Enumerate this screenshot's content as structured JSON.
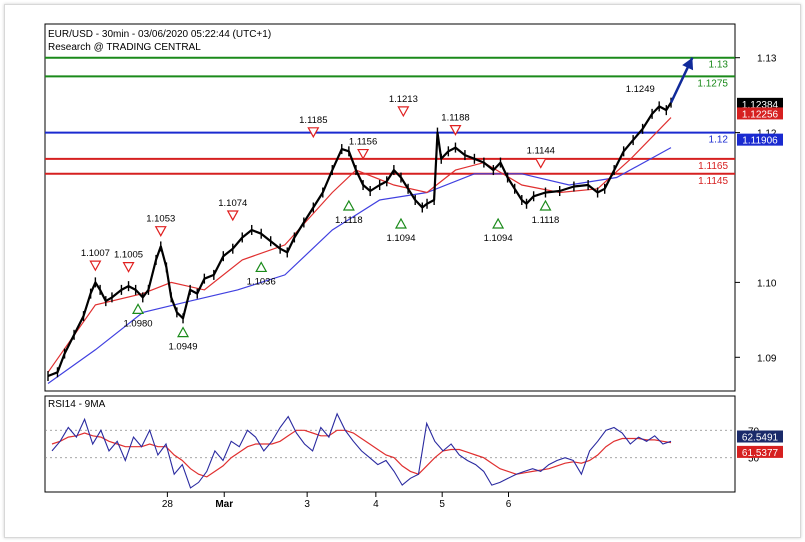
{
  "header": {
    "title": "EUR/USD - 30min - 03/06/2020 05:22:44 (UTC+1)",
    "subtitle": "Research @ TRADING CENTRAL"
  },
  "colors": {
    "price": "#000000",
    "ma_fast": "#e03030",
    "ma_slow": "#4040e0",
    "target": "#1a8a1a",
    "pivot": "#1a2ad0",
    "support": "#d62020",
    "rsi": "#2a2aa0",
    "rsi_signal": "#e03030",
    "arrow": "#102a9a"
  },
  "chart_data": [
    {
      "type": "line",
      "title": "EUR/USD - 30min - 03/06/2020 05:22:44 (UTC+1)",
      "subtitle": "Research @ TRADING CENTRAL",
      "ylim": [
        1.0855,
        1.1345
      ],
      "y_ticks": [
        "1.09",
        "1.10",
        "1.12",
        "1.13"
      ],
      "x_ticks": [
        "28",
        "Mar",
        "3",
        "4",
        "5",
        "6"
      ],
      "price_series": [
        {
          "x": 0.0,
          "y": 1.0875
        },
        {
          "x": 0.2,
          "y": 1.088
        },
        {
          "x": 0.35,
          "y": 1.0905
        },
        {
          "x": 0.55,
          "y": 1.093
        },
        {
          "x": 0.75,
          "y": 1.0955
        },
        {
          "x": 0.9,
          "y": 1.0985
        },
        {
          "x": 1.0,
          "y": 1.1
        },
        {
          "x": 1.1,
          "y": 1.099
        },
        {
          "x": 1.22,
          "y": 1.0975
        },
        {
          "x": 1.35,
          "y": 1.098
        },
        {
          "x": 1.55,
          "y": 1.099
        },
        {
          "x": 1.7,
          "y": 1.0995
        },
        {
          "x": 1.85,
          "y": 1.099
        },
        {
          "x": 2.0,
          "y": 1.098
        },
        {
          "x": 2.12,
          "y": 1.099
        },
        {
          "x": 2.28,
          "y": 1.103
        },
        {
          "x": 2.38,
          "y": 1.1048
        },
        {
          "x": 2.5,
          "y": 1.102
        },
        {
          "x": 2.6,
          "y": 1.098
        },
        {
          "x": 2.72,
          "y": 1.096
        },
        {
          "x": 2.85,
          "y": 1.0952
        },
        {
          "x": 3.0,
          "y": 1.099
        },
        {
          "x": 3.15,
          "y": 1.0985
        },
        {
          "x": 3.3,
          "y": 1.1005
        },
        {
          "x": 3.5,
          "y": 1.101
        },
        {
          "x": 3.7,
          "y": 1.1035
        },
        {
          "x": 3.9,
          "y": 1.1045
        },
        {
          "x": 4.1,
          "y": 1.106
        },
        {
          "x": 4.3,
          "y": 1.107
        },
        {
          "x": 4.5,
          "y": 1.1065
        },
        {
          "x": 4.7,
          "y": 1.1055
        },
        {
          "x": 4.9,
          "y": 1.1045
        },
        {
          "x": 5.05,
          "y": 1.104
        },
        {
          "x": 5.2,
          "y": 1.106
        },
        {
          "x": 5.4,
          "y": 1.108
        },
        {
          "x": 5.6,
          "y": 1.11
        },
        {
          "x": 5.8,
          "y": 1.112
        },
        {
          "x": 6.0,
          "y": 1.115
        },
        {
          "x": 6.2,
          "y": 1.1178
        },
        {
          "x": 6.35,
          "y": 1.1175
        },
        {
          "x": 6.5,
          "y": 1.115
        },
        {
          "x": 6.65,
          "y": 1.113
        },
        {
          "x": 6.8,
          "y": 1.1122
        },
        {
          "x": 7.0,
          "y": 1.113
        },
        {
          "x": 7.15,
          "y": 1.1135
        },
        {
          "x": 7.3,
          "y": 1.115
        },
        {
          "x": 7.45,
          "y": 1.114
        },
        {
          "x": 7.6,
          "y": 1.1125
        },
        {
          "x": 7.75,
          "y": 1.111
        },
        {
          "x": 7.9,
          "y": 1.11
        },
        {
          "x": 8.0,
          "y": 1.1105
        },
        {
          "x": 8.15,
          "y": 1.111
        },
        {
          "x": 8.22,
          "y": 1.12
        },
        {
          "x": 8.3,
          "y": 1.1165
        },
        {
          "x": 8.45,
          "y": 1.1175
        },
        {
          "x": 8.6,
          "y": 1.118
        },
        {
          "x": 8.8,
          "y": 1.117
        },
        {
          "x": 9.0,
          "y": 1.1165
        },
        {
          "x": 9.2,
          "y": 1.116
        },
        {
          "x": 9.4,
          "y": 1.115
        },
        {
          "x": 9.55,
          "y": 1.116
        },
        {
          "x": 9.7,
          "y": 1.114
        },
        {
          "x": 9.85,
          "y": 1.1125
        },
        {
          "x": 10.0,
          "y": 1.111
        },
        {
          "x": 10.1,
          "y": 1.1105
        },
        {
          "x": 10.25,
          "y": 1.1115
        },
        {
          "x": 10.5,
          "y": 1.112
        },
        {
          "x": 10.8,
          "y": 1.1122
        },
        {
          "x": 11.1,
          "y": 1.1128
        },
        {
          "x": 11.4,
          "y": 1.113
        },
        {
          "x": 11.6,
          "y": 1.112
        },
        {
          "x": 11.75,
          "y": 1.1125
        },
        {
          "x": 11.95,
          "y": 1.115
        },
        {
          "x": 12.15,
          "y": 1.1175
        },
        {
          "x": 12.35,
          "y": 1.119
        },
        {
          "x": 12.55,
          "y": 1.1205
        },
        {
          "x": 12.75,
          "y": 1.1225
        },
        {
          "x": 12.9,
          "y": 1.1235
        },
        {
          "x": 13.05,
          "y": 1.123
        },
        {
          "x": 13.15,
          "y": 1.124
        }
      ],
      "ma_fast": [
        {
          "x": 0.0,
          "y": 1.088
        },
        {
          "x": 1.0,
          "y": 1.097
        },
        {
          "x": 2.0,
          "y": 1.0985
        },
        {
          "x": 2.6,
          "y": 1.1
        },
        {
          "x": 3.3,
          "y": 1.099
        },
        {
          "x": 4.1,
          "y": 1.103
        },
        {
          "x": 5.0,
          "y": 1.105
        },
        {
          "x": 6.0,
          "y": 1.112
        },
        {
          "x": 6.5,
          "y": 1.115
        },
        {
          "x": 7.3,
          "y": 1.113
        },
        {
          "x": 8.0,
          "y": 1.112
        },
        {
          "x": 8.6,
          "y": 1.115
        },
        {
          "x": 9.2,
          "y": 1.116
        },
        {
          "x": 10.0,
          "y": 1.113
        },
        {
          "x": 10.8,
          "y": 1.112
        },
        {
          "x": 11.6,
          "y": 1.1125
        },
        {
          "x": 12.3,
          "y": 1.1165
        },
        {
          "x": 13.15,
          "y": 1.122
        }
      ],
      "ma_slow": [
        {
          "x": 0.0,
          "y": 1.0865
        },
        {
          "x": 1.0,
          "y": 1.091
        },
        {
          "x": 2.0,
          "y": 1.096
        },
        {
          "x": 3.0,
          "y": 1.0975
        },
        {
          "x": 4.0,
          "y": 1.099
        },
        {
          "x": 5.0,
          "y": 1.101
        },
        {
          "x": 6.0,
          "y": 1.107
        },
        {
          "x": 7.0,
          "y": 1.111
        },
        {
          "x": 8.0,
          "y": 1.112
        },
        {
          "x": 9.0,
          "y": 1.1145
        },
        {
          "x": 10.0,
          "y": 1.1145
        },
        {
          "x": 11.0,
          "y": 1.113
        },
        {
          "x": 12.0,
          "y": 1.114
        },
        {
          "x": 13.15,
          "y": 1.118
        }
      ],
      "levels": [
        {
          "value": 1.13,
          "label": "1.13",
          "color_key": "target"
        },
        {
          "value": 1.1275,
          "label": "1.1275",
          "color_key": "target"
        },
        {
          "value": 1.12,
          "label": "1.12",
          "color_key": "pivot"
        },
        {
          "value": 1.1165,
          "label": "1.1165",
          "color_key": "support"
        },
        {
          "value": 1.1145,
          "label": "1.1145",
          "color_key": "support"
        }
      ],
      "price_tags": [
        {
          "value": 1.12384,
          "label": "1.12384",
          "bg": "#000000"
        },
        {
          "value": 1.12256,
          "label": "1.12256",
          "bg": "#d62020"
        },
        {
          "value": 1.11906,
          "label": "1.11906",
          "bg": "#1a2ad0"
        }
      ],
      "annotations": [
        {
          "x": 1.0,
          "y": 1.1007,
          "label": "1.1007",
          "kind": "high"
        },
        {
          "x": 1.7,
          "y": 1.1005,
          "label": "1.1005",
          "kind": "high"
        },
        {
          "x": 1.9,
          "y": 1.098,
          "label": "1.0980",
          "kind": "low"
        },
        {
          "x": 2.38,
          "y": 1.1053,
          "label": "1.1053",
          "kind": "high"
        },
        {
          "x": 2.85,
          "y": 1.0949,
          "label": "1.0949",
          "kind": "low"
        },
        {
          "x": 3.9,
          "y": 1.1074,
          "label": "1.1074",
          "kind": "high"
        },
        {
          "x": 4.5,
          "y": 1.1036,
          "label": "1.1036",
          "kind": "low"
        },
        {
          "x": 5.6,
          "y": 1.1185,
          "label": "1.1185",
          "kind": "high"
        },
        {
          "x": 6.35,
          "y": 1.1118,
          "label": "1.1118",
          "kind": "low"
        },
        {
          "x": 6.65,
          "y": 1.1156,
          "label": "1.1156",
          "kind": "high"
        },
        {
          "x": 7.45,
          "y": 1.1094,
          "label": "1.1094",
          "kind": "low"
        },
        {
          "x": 7.5,
          "y": 1.1213,
          "label": "1.1213",
          "kind": "high"
        },
        {
          "x": 8.6,
          "y": 1.1188,
          "label": "1.1188",
          "kind": "high"
        },
        {
          "x": 9.5,
          "y": 1.1094,
          "label": "1.1094",
          "kind": "low"
        },
        {
          "x": 10.4,
          "y": 1.1144,
          "label": "1.1144",
          "kind": "high"
        },
        {
          "x": 10.5,
          "y": 1.1118,
          "label": "1.1118",
          "kind": "low"
        },
        {
          "x": 12.5,
          "y": 1.1249,
          "label": "1.1249",
          "kind": "none"
        }
      ],
      "forecast_arrow": {
        "from": {
          "x": 13.15,
          "y": 1.124
        },
        "to": {
          "x": 13.6,
          "y": 1.13
        }
      }
    },
    {
      "type": "line",
      "title": "RSI14 - 9MA",
      "ylim": [
        25,
        95
      ],
      "y_ticks": [
        "70",
        "50"
      ],
      "tag_values": [
        "62.5491",
        "61.5377"
      ],
      "rsi": [
        55,
        62,
        72,
        65,
        78,
        60,
        70,
        55,
        62,
        48,
        65,
        58,
        70,
        52,
        60,
        38,
        45,
        28,
        32,
        40,
        55,
        48,
        62,
        58,
        70,
        65,
        55,
        62,
        72,
        80,
        68,
        60,
        55,
        72,
        65,
        82,
        70,
        62,
        55,
        50,
        45,
        48,
        40,
        30,
        35,
        38,
        75,
        62,
        55,
        60,
        52,
        48,
        45,
        40,
        30,
        32,
        35,
        38,
        40,
        42,
        40,
        45,
        48,
        50,
        48,
        38,
        55,
        62,
        70,
        72,
        68,
        60,
        65,
        62,
        66,
        60,
        62
      ],
      "signal": [
        60,
        62,
        65,
        66,
        68,
        66,
        65,
        62,
        60,
        58,
        58,
        58,
        60,
        58,
        58,
        52,
        48,
        42,
        38,
        36,
        40,
        44,
        50,
        54,
        58,
        60,
        60,
        60,
        62,
        66,
        70,
        70,
        68,
        66,
        66,
        70,
        70,
        68,
        64,
        60,
        56,
        52,
        50,
        44,
        40,
        38,
        44,
        50,
        55,
        56,
        56,
        54,
        52,
        50,
        46,
        42,
        40,
        38,
        39,
        40,
        41,
        42,
        44,
        46,
        47,
        46,
        48,
        52,
        58,
        62,
        64,
        64,
        64,
        63,
        63,
        62,
        61
      ]
    }
  ]
}
